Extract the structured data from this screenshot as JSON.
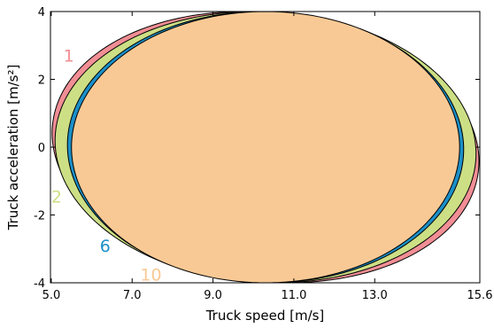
{
  "chart_data": {
    "type": "area",
    "xlabel": "Truck speed [m/s]",
    "ylabel": "Truck acceleration [m/s²]",
    "xlim": [
      4.98,
      15.6
    ],
    "ylim": [
      -4.0,
      4.0
    ],
    "x_ticks": [
      {
        "value": 5.0,
        "label": "5.0"
      },
      {
        "value": 7.0,
        "label": "7.0"
      },
      {
        "value": 9.0,
        "label": "9.0"
      },
      {
        "value": 11.0,
        "label": "11.0"
      },
      {
        "value": 13.0,
        "label": "13.0"
      },
      {
        "value": 15.6,
        "label": "15.6"
      }
    ],
    "y_ticks": [
      {
        "value": 4,
        "label": "4"
      },
      {
        "value": 2,
        "label": "2"
      },
      {
        "value": 0,
        "label": "0"
      },
      {
        "value": -2,
        "label": "-2"
      },
      {
        "value": -4,
        "label": "-4"
      }
    ],
    "grid": false,
    "series": [
      {
        "name": "1",
        "color": "#f28e95",
        "center": [
          10.3,
          0.0
        ],
        "a": 5.25,
        "b": 4.0,
        "skew": 0.55
      },
      {
        "name": "2",
        "color": "#cddf85",
        "center": [
          10.3,
          0.0
        ],
        "a": 5.2,
        "b": 4.0,
        "skew": 0.25
      },
      {
        "name": "6",
        "color": "#1b8fc8",
        "center": [
          10.3,
          0.0
        ],
        "a": 4.9,
        "b": 4.0,
        "skew": 0.08
      },
      {
        "name": "10",
        "color": "#f9c995",
        "center": [
          10.3,
          0.0
        ],
        "a": 4.8,
        "b": 4.0,
        "skew": 0.0
      }
    ],
    "annotations": [
      {
        "text": "1",
        "x": 5.3,
        "y": 2.7,
        "color": "#f28e95"
      },
      {
        "text": "2",
        "x": 5.0,
        "y": -1.45,
        "color": "#cddf85"
      },
      {
        "text": "6",
        "x": 6.2,
        "y": -2.9,
        "color": "#1b8fc8"
      },
      {
        "text": "10",
        "x": 7.2,
        "y": -3.75,
        "color": "#f9c995"
      }
    ]
  }
}
